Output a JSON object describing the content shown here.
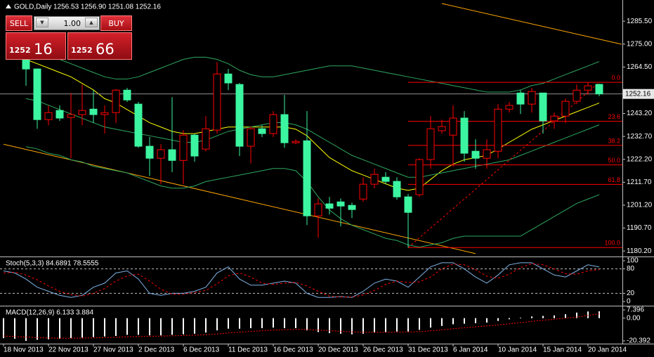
{
  "header": {
    "title": "GOLD,Daily",
    "prices": "1256.53 1256.90 1251.08 1252.16"
  },
  "trade_panel": {
    "sell": "SELL",
    "buy": "BUY",
    "lot": "1.00",
    "bid_big": "1252",
    "bid_small": "16",
    "ask_big": "1252",
    "ask_small": "66"
  },
  "chart_data": [
    {
      "type": "candlestick",
      "categories": [
        "18 Nov 2013",
        null,
        null,
        null,
        "22 Nov 2013",
        null,
        null,
        null,
        "27 Nov 2013",
        null,
        null,
        null,
        "2 Dec 2013",
        null,
        null,
        null,
        "6 Dec 2013",
        null,
        null,
        null,
        "11 Dec 2013",
        null,
        null,
        null,
        "16 Dec 2013",
        null,
        null,
        null,
        "20 Dec 2013",
        null,
        null,
        null,
        "26 Dec 2013",
        null,
        null,
        null,
        "31 Dec 2013",
        null,
        null,
        null,
        "6 Jan 2014",
        null,
        null,
        null,
        "10 Jan 2014",
        null,
        null,
        null,
        "15 Jan 2014",
        null,
        null,
        null,
        "20 Jan 2014",
        null
      ],
      "open": [
        null,
        null,
        1271.5,
        1263.6,
        1240.4,
        1244.6,
        1241.4,
        1242.7,
        1245.2,
        1242.7,
        1243.6,
        1253.9,
        1247.5,
        1228.2,
        1222.7,
        1226.6,
        1221.7,
        1233.3,
        1226.9,
        1235.6,
        1261.3,
        1256.5,
        1228.2,
        1236.2,
        1234.0,
        1242.7,
        1229.8,
        1230.7,
        1196.3,
        1201.8,
        1202.7,
        1201.1,
        1204.0,
        1210.8,
        1214.0,
        1212.1,
        1205.0,
        1206.0,
        1222.1,
        1235.3,
        1233.3,
        1241.1,
        1225.9,
        1222.7,
        1225.9,
        1245.2,
        1252.6,
        1247.5,
        1252.6,
        1239.8,
        1242.0,
        1248.8,
        1253.9,
        1256.53
      ],
      "high": [
        null,
        null,
        1273.0,
        1263.9,
        1246.9,
        1246.9,
        1252.6,
        1256.5,
        1253.9,
        1246.9,
        1254.4,
        1254.9,
        1248.5,
        1232.4,
        1229.1,
        1250.7,
        1235.6,
        1234.0,
        1242.0,
        1266.8,
        1263.6,
        1257.2,
        1237.2,
        1237.8,
        1244.3,
        1251.7,
        1231.4,
        1244.3,
        1204.3,
        1205.0,
        1204.3,
        1202.4,
        1214.0,
        1217.9,
        1216.3,
        1214.0,
        1206.3,
        1222.7,
        1242.0,
        1240.4,
        1246.9,
        1244.3,
        1231.4,
        1231.4,
        1247.5,
        1248.5,
        1253.9,
        1254.9,
        1252.6,
        1243.6,
        1250.1,
        1256.5,
        1257.5,
        1256.9
      ],
      "low": [
        null,
        null,
        1255.9,
        1236.2,
        1237.8,
        1239.8,
        1222.7,
        1237.8,
        1238.8,
        1234.0,
        1238.8,
        1248.5,
        1227.5,
        1214.6,
        1210.8,
        1216.3,
        1210.8,
        1221.1,
        1225.9,
        1234.0,
        1253.9,
        1223.7,
        1220.4,
        1232.4,
        1232.4,
        1227.5,
        1229.1,
        1192.1,
        1186.3,
        1196.9,
        1191.5,
        1195.3,
        1202.7,
        1208.9,
        1210.8,
        1203.7,
        1181.8,
        1205.0,
        1217.9,
        1234.0,
        1218.8,
        1221.1,
        1217.9,
        1217.9,
        1222.7,
        1243.6,
        1243.0,
        1243.6,
        1234.0,
        1236.2,
        1238.8,
        1247.5,
        1251.7,
        1251.08
      ],
      "close": [
        null,
        null,
        1263.6,
        1240.4,
        1243.6,
        1241.1,
        1242.7,
        1244.6,
        1242.7,
        1243.6,
        1253.9,
        1249.4,
        1228.2,
        1222.7,
        1226.6,
        1221.7,
        1233.3,
        1223.7,
        1236.2,
        1261.3,
        1257.2,
        1228.2,
        1236.2,
        1234.0,
        1242.7,
        1229.8,
        1230.4,
        1196.3,
        1201.8,
        1199.8,
        1200.8,
        1199.2,
        1210.8,
        1215.3,
        1212.1,
        1205.0,
        1197.9,
        1222.1,
        1236.2,
        1237.2,
        1241.1,
        1225.0,
        1222.7,
        1226.6,
        1245.2,
        1246.9,
        1247.5,
        1253.3,
        1239.8,
        1242.0,
        1248.8,
        1253.9,
        1255.9,
        1252.16
      ],
      "up_color": "#ff0000",
      "down_color": "#3cf5a0",
      "ylim": [
        1178,
        1295.2
      ],
      "yticks": [
        {
          "value": 1285.5,
          "label": "1285.50"
        },
        {
          "value": 1275,
          "label": "1275.00"
        },
        {
          "value": 1264.5,
          "label": "1264.50"
        },
        {
          "value": 1243.2,
          "label": "1243.20"
        },
        {
          "value": 1232.7,
          "label": "1232.70"
        },
        {
          "value": 1222.2,
          "label": "1222.20"
        },
        {
          "value": 1211.7,
          "label": "1211.70"
        },
        {
          "value": 1201.2,
          "label": "1201.20"
        },
        {
          "value": 1190.7,
          "label": "1190.70"
        },
        {
          "value": 1180.2,
          "label": "1180.20"
        }
      ],
      "bid": {
        "value": 1252.16,
        "label": "1252.16"
      },
      "overlays": [
        {
          "color": "#ffff00",
          "values": [
            null,
            null,
            1268,
            1266,
            1264,
            1262,
            1260,
            1257,
            1254,
            1250,
            1248,
            1245,
            1242,
            1239,
            1237,
            1235,
            1234,
            1234,
            1235,
            1236,
            1237,
            1237,
            1237,
            1237,
            1237,
            1237,
            1236,
            1233,
            1228,
            1223,
            1220,
            1217,
            1215,
            1213,
            1211,
            1209,
            1208,
            1209,
            1213,
            1217,
            1220,
            1222,
            1223,
            1224,
            1227,
            1230,
            1233,
            1236,
            1238,
            1240,
            1242,
            1244,
            1246,
            1248
          ]
        },
        {
          "color": "#2ea860",
          "values": [
            null,
            null,
            1274,
            1272,
            1270,
            1268,
            1266,
            1264,
            1262,
            1260,
            1259,
            1259,
            1260,
            1262,
            1264,
            1266,
            1268,
            1269,
            1269,
            1268,
            1266,
            1263,
            1261,
            1260,
            1260,
            1261,
            1262,
            1263,
            1264,
            1265,
            1265,
            1265,
            1264,
            1263,
            1262,
            1261,
            1260,
            1259,
            1258,
            1257,
            1256,
            1255,
            1254,
            1253,
            1253,
            1253,
            1254,
            1256,
            1257,
            1259,
            1261,
            1263,
            1265,
            1267
          ]
        },
        {
          "color": "#2ea860",
          "values": [
            null,
            null,
            1250,
            1249,
            1247,
            1245,
            1243,
            1241,
            1239,
            1237,
            1236,
            1235,
            1234,
            1233,
            1232,
            1231,
            1230,
            1230,
            1231,
            1233,
            1235,
            1236,
            1237,
            1238,
            1239,
            1239,
            1238,
            1236,
            1233,
            1230,
            1227,
            1224,
            1222,
            1220,
            1218,
            1216,
            1214,
            1214,
            1215,
            1216,
            1217,
            1218,
            1219,
            1220,
            1221,
            1222,
            1224,
            1226,
            1228,
            1230,
            1232,
            1234,
            1236,
            1238
          ]
        },
        {
          "color": "#2ea860",
          "values": [
            null,
            null,
            1228,
            1227,
            1225,
            1224,
            1222,
            1221,
            1219,
            1218,
            1217,
            1216,
            1214,
            1212,
            1210,
            1209,
            1209,
            1210,
            1212,
            1213,
            1214,
            1215,
            1216,
            1217,
            1218,
            1218,
            1217,
            1212,
            1205,
            1199,
            1195,
            1192,
            1190,
            1188,
            1186,
            1185,
            1183,
            1182,
            1183,
            1184,
            1186,
            1187,
            1187,
            1187,
            1187,
            1187,
            1187,
            1190,
            1193,
            1196,
            1199,
            1202,
            1204,
            1206
          ]
        }
      ],
      "trendlines": [
        {
          "color": "#ffa500",
          "points": [
            [
              0,
              1229.1
            ],
            [
              42,
              1179.0
            ]
          ]
        },
        {
          "color": "#ffa500",
          "points": [
            [
              39,
              1293.6
            ],
            [
              55,
              1274.9
            ]
          ]
        }
      ],
      "fibonacci": {
        "color": "#ff0000",
        "price_0": 1257.5,
        "price_100": 1181.8,
        "levels": [
          {
            "value": 0,
            "label": "0.0"
          },
          23.6,
          38.2,
          {
            "value": 50,
            "label": "50.0"
          },
          61.8,
          {
            "value": 100,
            "label": "100.0"
          }
        ]
      }
    },
    {
      "type": "line",
      "title": "Stoch(5,3,3) 84.6891 78.5555",
      "ylim": [
        0,
        100
      ],
      "yticks": [
        100,
        80,
        20,
        0
      ],
      "grid": true,
      "series": [
        {
          "color": "#7fb2e5",
          "dash": false,
          "values": [
            75,
            70,
            55,
            35,
            25,
            15,
            10,
            15,
            35,
            45,
            70,
            75,
            55,
            20,
            15,
            20,
            20,
            25,
            35,
            70,
            85,
            55,
            40,
            40,
            45,
            50,
            45,
            20,
            10,
            10,
            12,
            10,
            25,
            45,
            55,
            50,
            35,
            60,
            85,
            95,
            95,
            80,
            60,
            45,
            65,
            90,
            95,
            95,
            80,
            65,
            60,
            75,
            90,
            84.6891
          ]
        },
        {
          "color": "#ff0000",
          "dash": true,
          "values": [
            70,
            72,
            65,
            53,
            38,
            25,
            17,
            13,
            20,
            32,
            50,
            63,
            67,
            50,
            30,
            18,
            18,
            22,
            27,
            43,
            63,
            70,
            60,
            45,
            42,
            45,
            47,
            38,
            25,
            13,
            11,
            11,
            16,
            27,
            42,
            50,
            47,
            48,
            60,
            80,
            92,
            90,
            78,
            62,
            57,
            67,
            83,
            93,
            90,
            80,
            68,
            67,
            75,
            78.5555
          ]
        }
      ]
    },
    {
      "type": "macd",
      "title": "MACD(12,26,9) 6.133 3.884",
      "ylim": [
        -20.392,
        7.396
      ],
      "yticks": [
        7.396,
        {
          "value": 0,
          "label": "0.00"
        },
        -20.392
      ],
      "histogram": {
        "color": "#ffffff",
        "values": [
          -18,
          -18.5,
          -20.392,
          -19.5,
          -19,
          -18.5,
          -18,
          -17.5,
          -17,
          -16.5,
          -16,
          -15,
          -15,
          -15.5,
          -15.5,
          -15,
          -14.5,
          -14,
          -13,
          -11,
          -9.5,
          -9.5,
          -9,
          -9,
          -8.5,
          -9,
          -9,
          -11,
          -12.5,
          -13.5,
          -14,
          -14.5,
          -14,
          -13,
          -12.5,
          -12,
          -12,
          -10.5,
          -8.5,
          -7,
          -5.5,
          -5,
          -4.5,
          -4,
          -2.5,
          -1,
          0.5,
          1.5,
          2,
          2.5,
          3.5,
          5,
          6,
          6.133
        ]
      },
      "signal": {
        "color": "#ff0000",
        "dash": true,
        "values": [
          -16,
          -16.5,
          -17,
          -17.5,
          -17.8,
          -18,
          -18,
          -17.9,
          -17.7,
          -17.5,
          -17.2,
          -16.8,
          -16.5,
          -16.3,
          -16.1,
          -15.9,
          -15.6,
          -15.3,
          -14.9,
          -14.2,
          -13.3,
          -12.6,
          -11.9,
          -11.3,
          -10.7,
          -10.4,
          -10.1,
          -10.3,
          -10.7,
          -11.3,
          -11.8,
          -12.3,
          -12.6,
          -12.7,
          -12.7,
          -12.6,
          -12.5,
          -12.1,
          -11.4,
          -10.5,
          -9.5,
          -8.6,
          -7.8,
          -7,
          -6.1,
          -5.1,
          -4,
          -2.9,
          -1.9,
          -1,
          0,
          1,
          2.4,
          3.884
        ]
      }
    }
  ]
}
